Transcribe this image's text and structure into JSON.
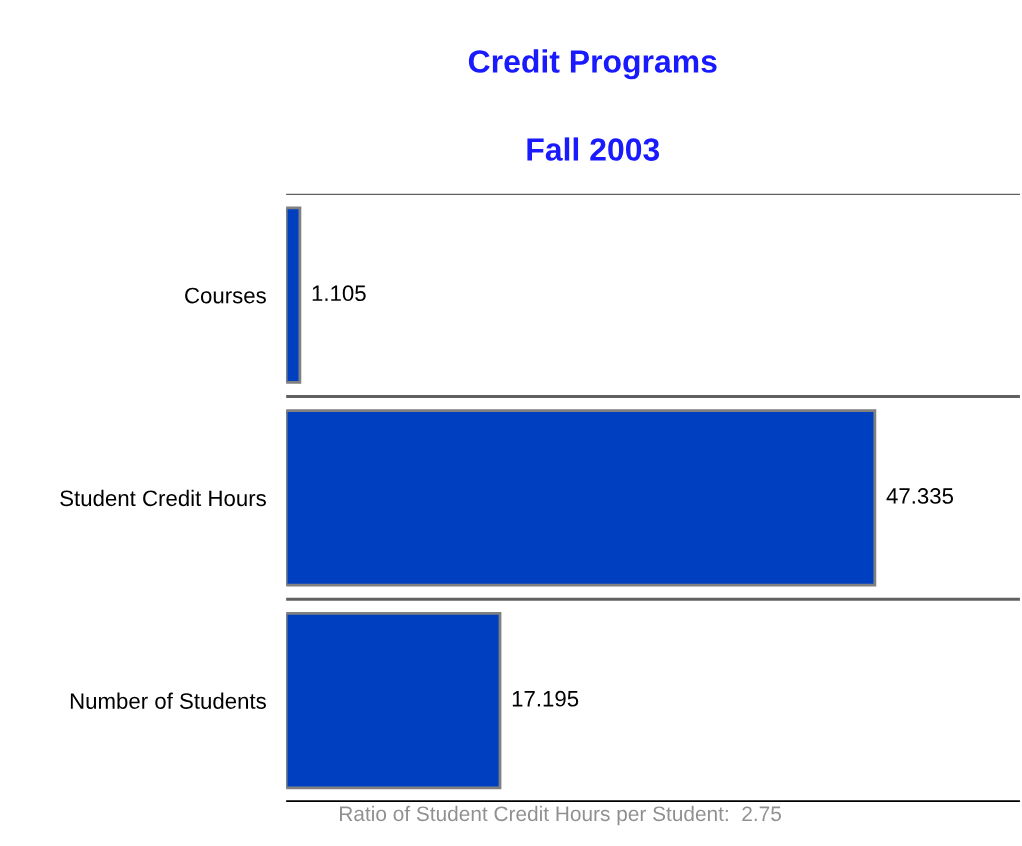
{
  "chart_data": {
    "type": "bar",
    "orientation": "horizontal",
    "title": "Credit Programs",
    "subtitle": "Fall 2003",
    "categories": [
      "Courses",
      "Student Credit Hours",
      "Number of Students"
    ],
    "values": [
      1.105,
      47.335,
      17.195
    ],
    "color": "#0040c0",
    "xlim": [
      0,
      59
    ],
    "data_labels": true,
    "grid": "y",
    "tick_labels": "y",
    "legend": false,
    "annotations": [
      "Ratio of Student Credit Hours per Student:  2.75"
    ]
  }
}
